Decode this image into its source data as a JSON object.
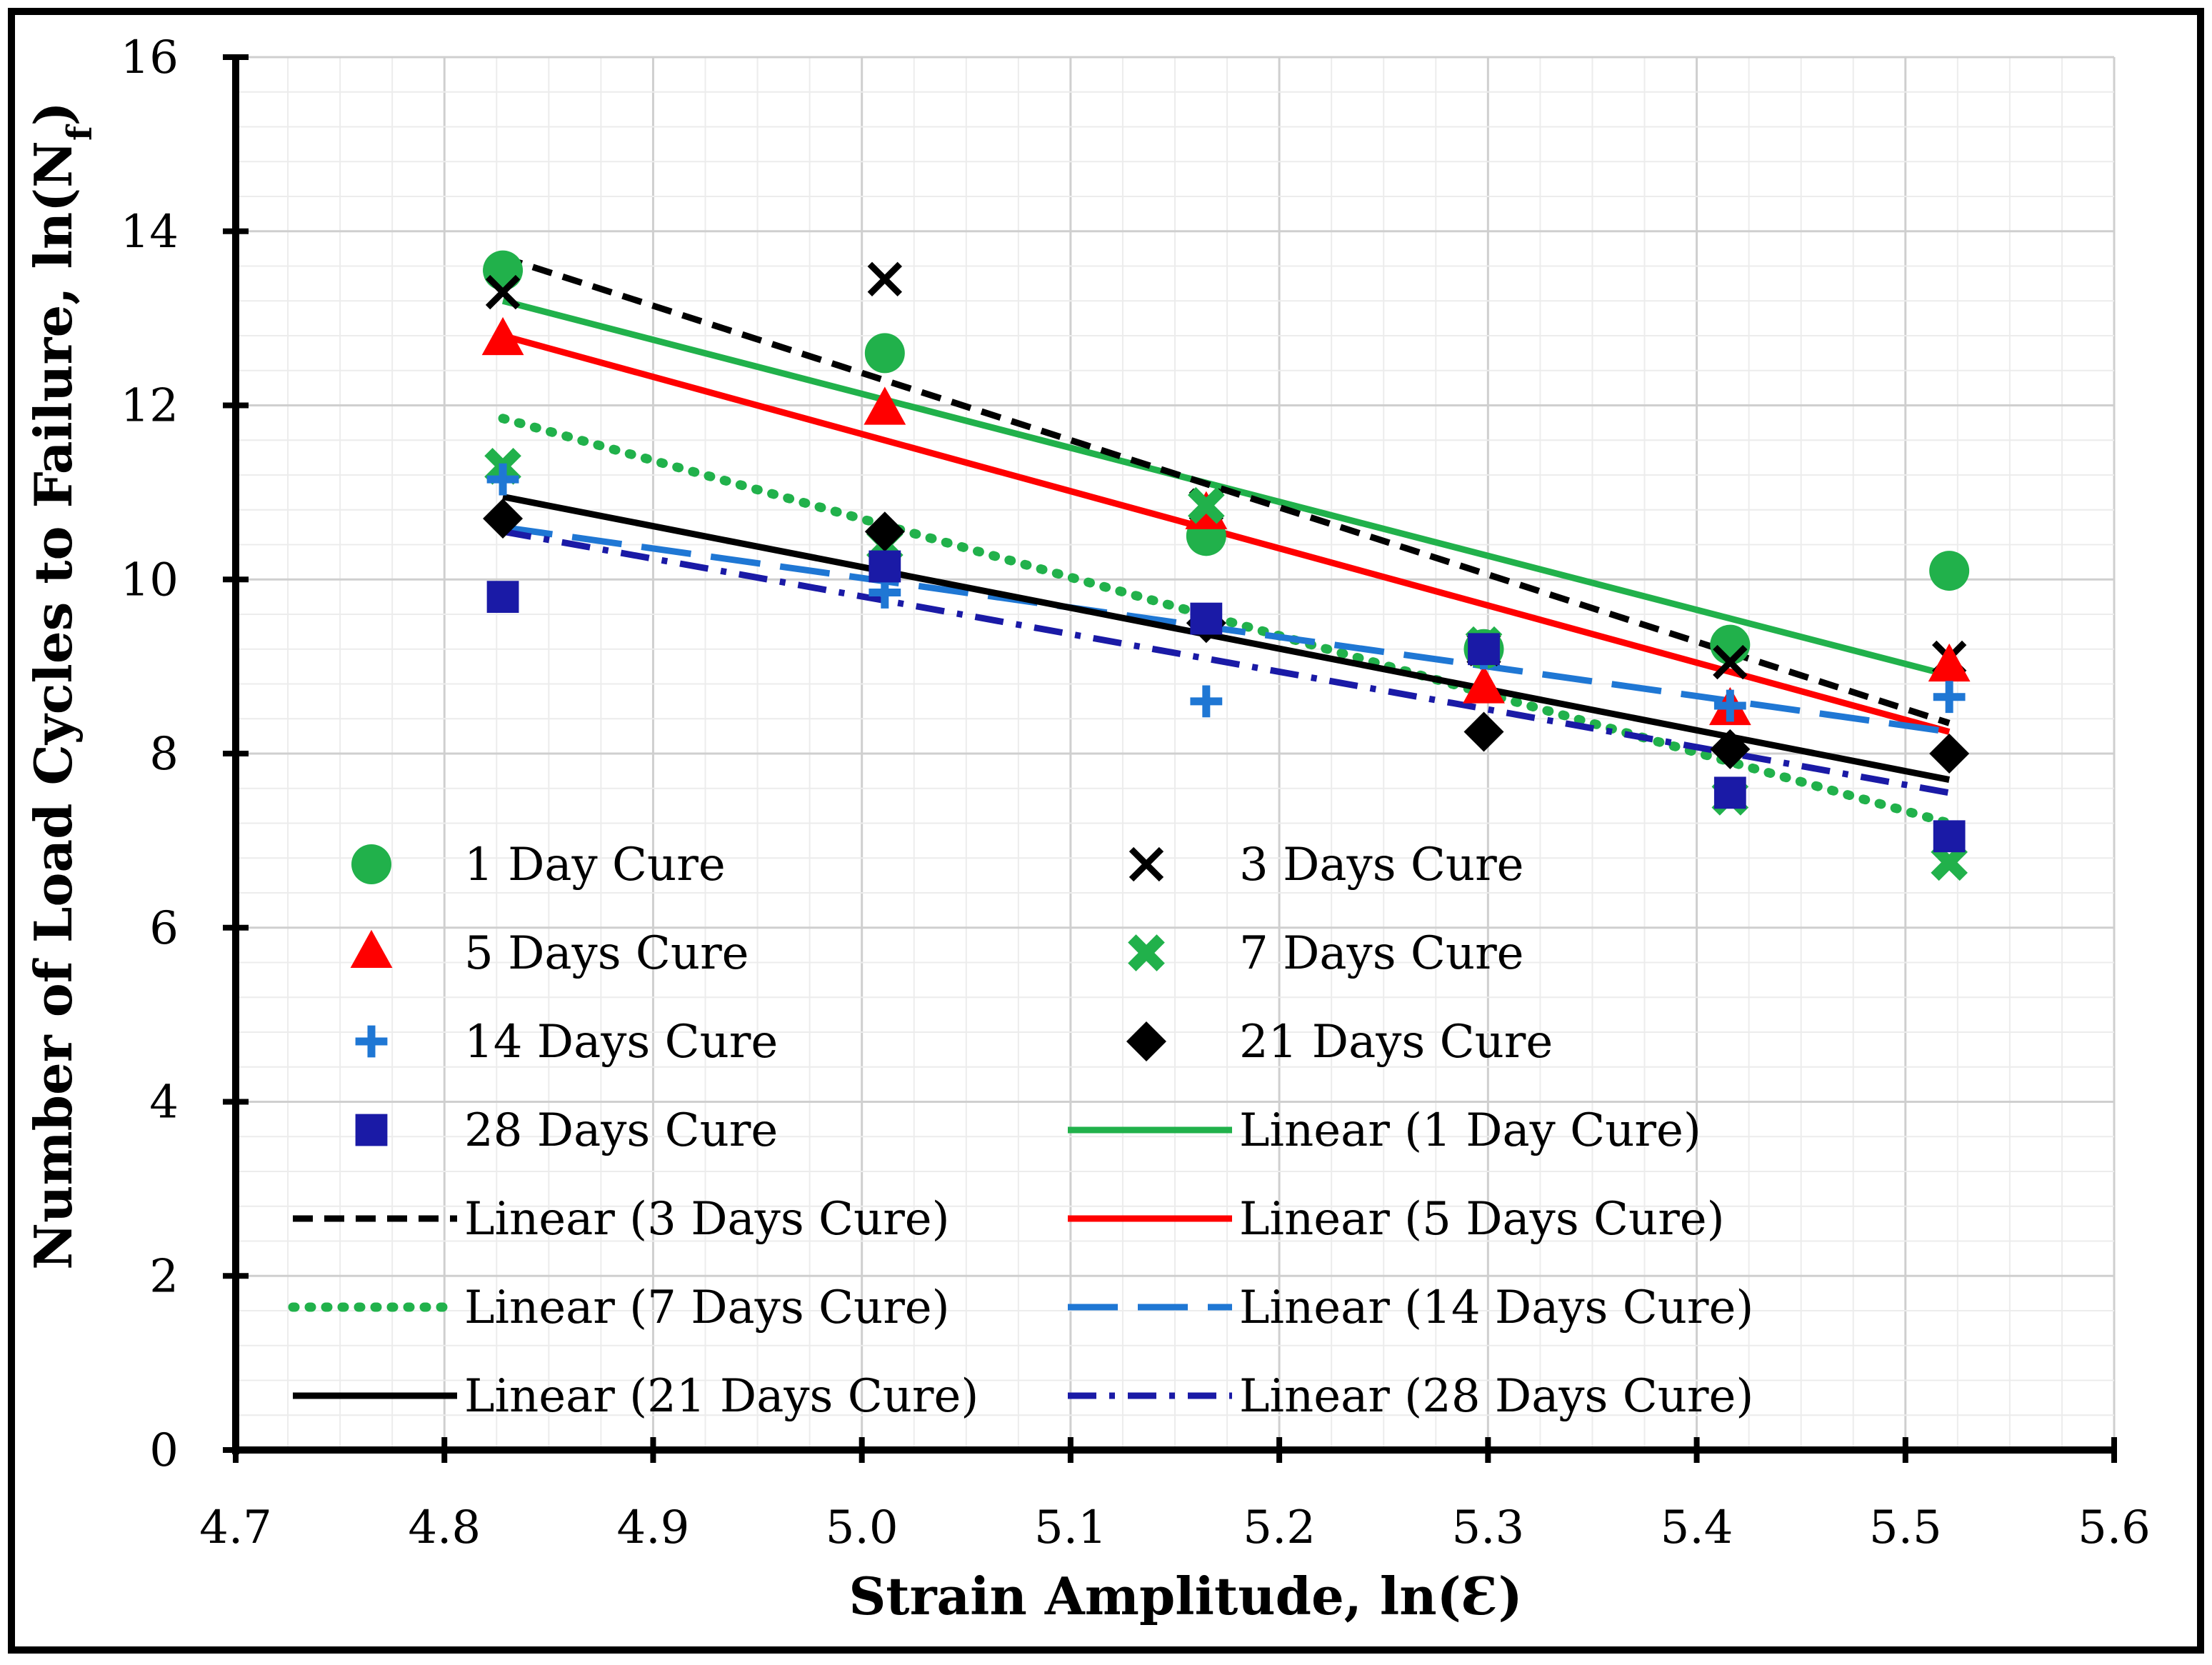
{
  "chart_data": {
    "type": "scatter",
    "title": "",
    "xlabel": "Strain Amplitude, ln(Ɛ)",
    "ylabel_main": "Number of Load Cycles to Failure, ln(N",
    "ylabel_sub": "f",
    "ylabel_close": ")",
    "xlim": [
      4.7,
      5.6
    ],
    "ylim": [
      0,
      16
    ],
    "x_ticks": [
      "4.7",
      "4.8",
      "4.9",
      "5.0",
      "5.1",
      "5.2",
      "5.3",
      "5.4",
      "5.5",
      "5.6"
    ],
    "y_ticks": [
      "0",
      "2",
      "4",
      "6",
      "8",
      "10",
      "12",
      "14",
      "16"
    ],
    "grid": true,
    "legend_position": "bottom-inside",
    "x": [
      4.828,
      5.011,
      5.165,
      5.298,
      5.416,
      5.521
    ],
    "series": [
      {
        "name": "1 Day Cure",
        "marker": "circle",
        "color": "#21b14b",
        "values": [
          13.55,
          12.6,
          10.5,
          9.2,
          9.25,
          10.1
        ]
      },
      {
        "name": "3 Days Cure",
        "marker": "x",
        "color": "#000000",
        "values": [
          13.3,
          13.45,
          10.85,
          9.2,
          9.05,
          9.1
        ]
      },
      {
        "name": "5 Days Cure",
        "marker": "triangle",
        "color": "#ff0000",
        "values": [
          12.75,
          11.95,
          10.75,
          8.75,
          8.5,
          9.0
        ]
      },
      {
        "name": "7 Days Cure",
        "marker": "xbold",
        "color": "#21b14b",
        "values": [
          11.3,
          10.4,
          10.85,
          9.25,
          7.5,
          6.75
        ]
      },
      {
        "name": "14 Days Cure",
        "marker": "plus",
        "color": "#1f77d4",
        "values": [
          11.15,
          9.85,
          8.6,
          9.15,
          8.55,
          8.65
        ]
      },
      {
        "name": "21 Days Cure",
        "marker": "diamond",
        "color": "#000000",
        "values": [
          10.7,
          10.55,
          9.5,
          8.25,
          8.05,
          8.0
        ]
      },
      {
        "name": "28 Days Cure",
        "marker": "square",
        "color": "#1a1aa6",
        "values": [
          9.8,
          10.15,
          9.55,
          9.2,
          7.55,
          7.05
        ]
      }
    ],
    "trendlines": [
      {
        "name": "Linear (1 Day Cure)",
        "color": "#21b14b",
        "dash": "solid",
        "x": [
          4.828,
          5.521
        ],
        "y": [
          13.2,
          8.9
        ]
      },
      {
        "name": "Linear (3 Days Cure)",
        "color": "#000000",
        "dash": "dash",
        "x": [
          4.828,
          5.521
        ],
        "y": [
          13.7,
          8.35
        ]
      },
      {
        "name": "Linear (5 Days Cure)",
        "color": "#ff0000",
        "dash": "solid",
        "x": [
          4.828,
          5.521
        ],
        "y": [
          12.8,
          8.25
        ]
      },
      {
        "name": "Linear (7 Days Cure)",
        "color": "#21b14b",
        "dash": "dot",
        "x": [
          4.828,
          5.521
        ],
        "y": [
          11.85,
          7.2
        ]
      },
      {
        "name": "Linear (14 Days Cure)",
        "color": "#1f77d4",
        "dash": "longdash",
        "x": [
          4.828,
          5.521
        ],
        "y": [
          10.6,
          8.25
        ]
      },
      {
        "name": "Linear (21 Days Cure)",
        "color": "#000000",
        "dash": "solid",
        "x": [
          4.828,
          5.521
        ],
        "y": [
          10.95,
          7.7
        ]
      },
      {
        "name": "Linear (28 Days Cure)",
        "color": "#1a1aa6",
        "dash": "dashdot",
        "x": [
          4.828,
          5.521
        ],
        "y": [
          10.55,
          7.55
        ]
      }
    ],
    "legend_order": [
      "1 Day Cure",
      "3 Days Cure",
      "5 Days Cure",
      "7 Days Cure",
      "14 Days Cure",
      "21 Days Cure",
      "28 Days Cure",
      "Linear (1 Day Cure)",
      "Linear (3 Days Cure)",
      "Linear (5 Days Cure)",
      "Linear (7 Days Cure)",
      "Linear (14 Days Cure)",
      "Linear (21 Days Cure)",
      "Linear (28 Days Cure)"
    ]
  }
}
